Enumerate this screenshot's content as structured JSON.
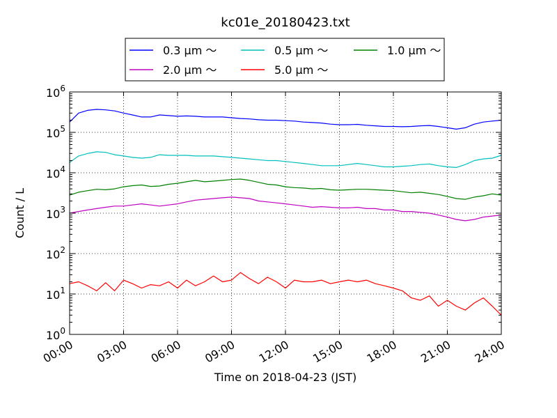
{
  "chart_data": {
    "type": "line",
    "title": "kc01e_20180423.txt",
    "xlabel": "Time on 2018-04-23 (JST)",
    "ylabel": "Count / L",
    "y_scale": "log",
    "ylim": [
      1,
      1000000
    ],
    "xlim": [
      "00:00",
      "24:00"
    ],
    "grid": true,
    "legend_position": "top-center",
    "x_ticks": [
      "00:00",
      "03:00",
      "06:00",
      "09:00",
      "12:00",
      "15:00",
      "18:00",
      "21:00",
      "24:00"
    ],
    "y_ticks": [
      {
        "value": 1,
        "base": "10",
        "exp": "0"
      },
      {
        "value": 10,
        "base": "10",
        "exp": "1"
      },
      {
        "value": 100,
        "base": "10",
        "exp": "2"
      },
      {
        "value": 1000,
        "base": "10",
        "exp": "3"
      },
      {
        "value": 10000,
        "base": "10",
        "exp": "4"
      },
      {
        "value": 100000,
        "base": "10",
        "exp": "5"
      },
      {
        "value": 1000000,
        "base": "10",
        "exp": "6"
      }
    ],
    "x": [
      "00:00",
      "00:30",
      "01:00",
      "01:30",
      "02:00",
      "02:30",
      "03:00",
      "03:30",
      "04:00",
      "04:30",
      "05:00",
      "05:30",
      "06:00",
      "06:30",
      "07:00",
      "07:30",
      "08:00",
      "08:30",
      "09:00",
      "09:30",
      "10:00",
      "10:30",
      "11:00",
      "11:30",
      "12:00",
      "12:30",
      "13:00",
      "13:30",
      "14:00",
      "14:30",
      "15:00",
      "15:30",
      "16:00",
      "16:30",
      "17:00",
      "17:30",
      "18:00",
      "18:30",
      "19:00",
      "19:30",
      "20:00",
      "20:30",
      "21:00",
      "21:30",
      "22:00",
      "22:30",
      "23:00",
      "23:30",
      "24:00"
    ],
    "series": [
      {
        "name": "0.3 μm ～",
        "legend_label": "0.3 μm ～",
        "color": "#0000ff",
        "values": [
          180000,
          300000,
          350000,
          370000,
          360000,
          340000,
          300000,
          270000,
          240000,
          240000,
          270000,
          260000,
          250000,
          255000,
          250000,
          240000,
          240000,
          240000,
          230000,
          220000,
          215000,
          205000,
          200000,
          200000,
          195000,
          190000,
          180000,
          175000,
          170000,
          160000,
          155000,
          155000,
          158000,
          150000,
          145000,
          140000,
          140000,
          138000,
          140000,
          145000,
          148000,
          140000,
          130000,
          120000,
          130000,
          160000,
          180000,
          190000,
          200000
        ]
      },
      {
        "name": "0.5 μm ～",
        "legend_label": "0.5 μm ～",
        "color": "#00bfbf",
        "values": [
          18000,
          26000,
          30000,
          33000,
          32000,
          28000,
          26000,
          24000,
          23000,
          24000,
          28000,
          27000,
          27000,
          27000,
          26000,
          26000,
          26000,
          25000,
          24000,
          23000,
          22000,
          21000,
          20000,
          20000,
          19000,
          18000,
          17000,
          16000,
          15000,
          15000,
          15000,
          16000,
          17000,
          16000,
          15000,
          14000,
          14000,
          14500,
          15000,
          16000,
          16500,
          15000,
          14000,
          13500,
          16000,
          20000,
          22000,
          23000,
          27000
        ]
      },
      {
        "name": "1.0 μm ～",
        "legend_label": "1.0 μm ～",
        "color": "#008000",
        "values": [
          2800,
          3300,
          3600,
          3900,
          3800,
          4000,
          4500,
          4800,
          5000,
          4600,
          4700,
          5200,
          5500,
          6000,
          6500,
          6000,
          6200,
          6500,
          6800,
          7000,
          6500,
          5800,
          5200,
          5000,
          4500,
          4300,
          4200,
          4000,
          4100,
          3800,
          3700,
          3800,
          3900,
          3900,
          3800,
          3700,
          3600,
          3400,
          3200,
          3300,
          3100,
          2900,
          2600,
          2300,
          2200,
          2500,
          2700,
          3000,
          2800
        ]
      },
      {
        "name": "2.0 μm ～",
        "legend_label": "2.0 μm ～",
        "color": "#bf00bf",
        "values": [
          1000,
          1100,
          1200,
          1300,
          1400,
          1500,
          1500,
          1600,
          1700,
          1600,
          1500,
          1600,
          1700,
          1900,
          2100,
          2200,
          2300,
          2400,
          2500,
          2400,
          2300,
          2000,
          1900,
          1800,
          1700,
          1600,
          1500,
          1400,
          1450,
          1400,
          1350,
          1350,
          1400,
          1300,
          1300,
          1200,
          1200,
          1100,
          1100,
          1050,
          1000,
          900,
          800,
          700,
          650,
          700,
          800,
          850,
          900
        ]
      },
      {
        "name": "5.0 μm ～",
        "legend_label": "5.0 μm ～",
        "color": "#ff0000",
        "values": [
          18,
          20,
          16,
          12,
          19,
          12,
          22,
          18,
          14,
          17,
          16,
          20,
          14,
          22,
          16,
          20,
          28,
          20,
          22,
          34,
          24,
          18,
          26,
          20,
          14,
          22,
          20,
          20,
          22,
          18,
          20,
          22,
          20,
          22,
          18,
          16,
          14,
          12,
          8,
          7,
          9,
          5,
          7,
          5,
          4,
          6,
          8,
          5,
          3
        ]
      }
    ]
  }
}
